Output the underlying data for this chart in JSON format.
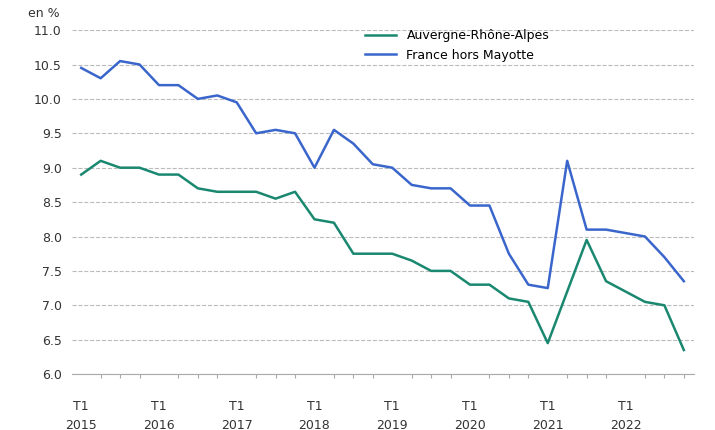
{
  "ylabel_text": "en %",
  "ylim": [
    6.0,
    11.0
  ],
  "yticks": [
    6.0,
    6.5,
    7.0,
    7.5,
    8.0,
    8.5,
    9.0,
    9.5,
    10.0,
    10.5,
    11.0
  ],
  "x_major_positions": [
    0,
    4,
    8,
    12,
    16,
    20,
    24,
    28
  ],
  "x_years": [
    "2015",
    "2016",
    "2017",
    "2018",
    "2019",
    "2020",
    "2021",
    "2022"
  ],
  "auvergne_color": "#1a8870",
  "france_color": "#3a66cc",
  "legend_labels": [
    "Auvergne-Rhône-Alpes",
    "France hors Mayotte"
  ],
  "auvergne_data": [
    8.9,
    9.1,
    9.0,
    9.0,
    8.9,
    8.9,
    8.7,
    8.65,
    8.65,
    8.65,
    8.55,
    8.65,
    8.25,
    8.2,
    7.75,
    7.75,
    7.75,
    7.65,
    7.5,
    7.5,
    7.3,
    7.3,
    7.1,
    7.05,
    6.45,
    7.2,
    7.95,
    7.35,
    7.2,
    7.05,
    7.0,
    6.35
  ],
  "france_data": [
    10.45,
    10.3,
    10.55,
    10.5,
    10.2,
    10.2,
    10.0,
    10.05,
    9.95,
    9.5,
    9.55,
    9.5,
    9.0,
    9.55,
    9.35,
    9.05,
    9.0,
    8.75,
    8.7,
    8.7,
    8.45,
    8.45,
    7.75,
    7.3,
    7.25,
    9.1,
    8.1,
    8.1,
    8.05,
    8.0,
    7.7,
    7.35
  ],
  "background_color": "#ffffff",
  "grid_color": "#bbbbbb",
  "line_width": 1.8
}
